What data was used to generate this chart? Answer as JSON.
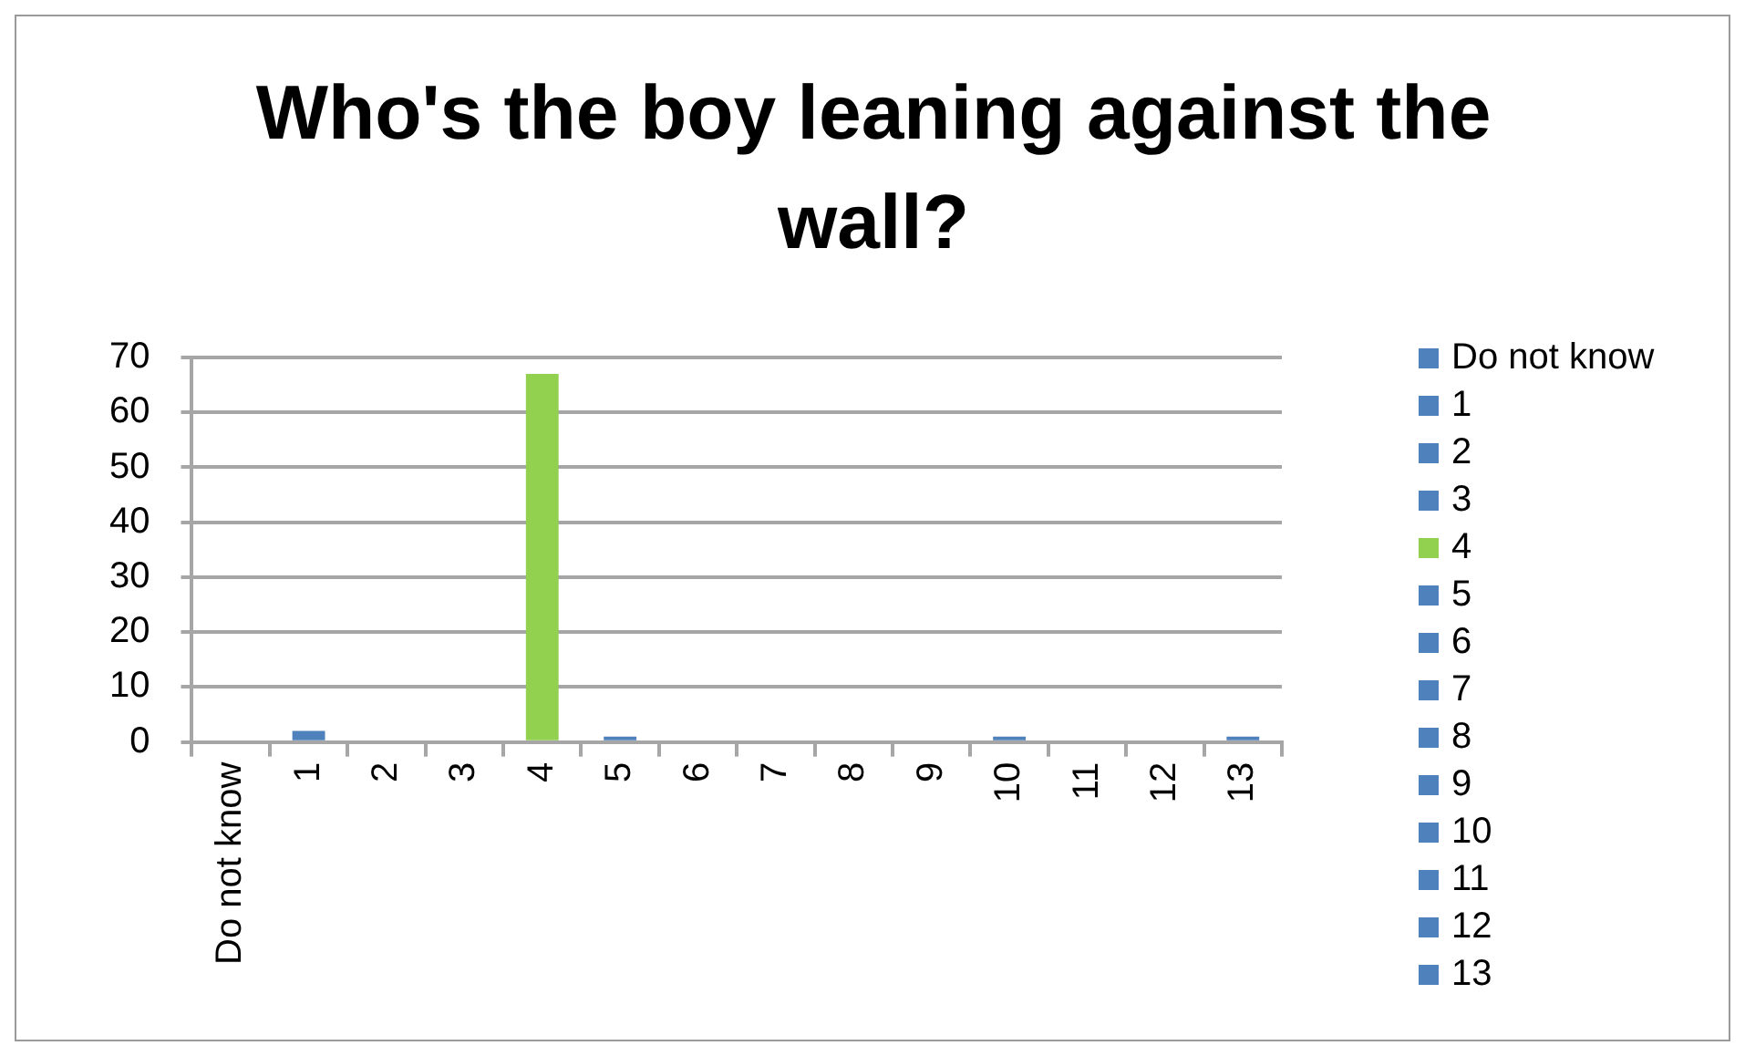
{
  "chart_data": {
    "type": "bar",
    "title": "Who's the boy leaning against the wall?",
    "categories": [
      "Do not know",
      "1",
      "2",
      "3",
      "4",
      "5",
      "6",
      "7",
      "8",
      "9",
      "10",
      "11",
      "12",
      "13"
    ],
    "values": [
      0,
      2,
      0,
      0,
      67,
      1,
      0,
      0,
      0,
      0,
      1,
      0,
      0,
      1
    ],
    "colors": [
      "#4f81bd",
      "#4f81bd",
      "#4f81bd",
      "#4f81bd",
      "#92d050",
      "#4f81bd",
      "#4f81bd",
      "#4f81bd",
      "#4f81bd",
      "#4f81bd",
      "#4f81bd",
      "#4f81bd",
      "#4f81bd",
      "#4f81bd"
    ],
    "ylim": [
      0,
      70
    ],
    "yticks": [
      0,
      10,
      20,
      30,
      40,
      50,
      60,
      70
    ],
    "grid": "y"
  }
}
